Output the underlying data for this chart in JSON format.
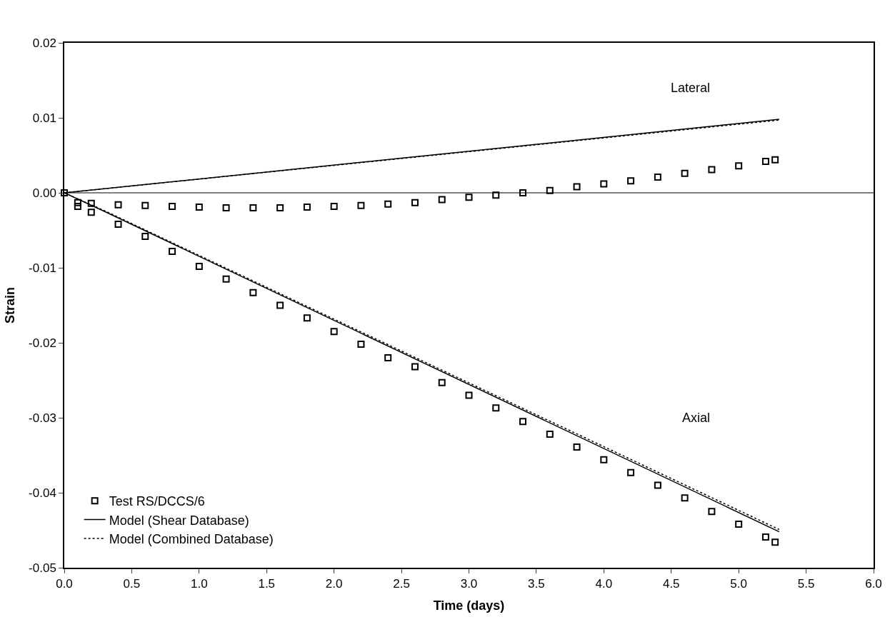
{
  "chart_data": {
    "type": "line",
    "xlabel": "Time (days)",
    "ylabel": "Strain",
    "xlim": [
      0,
      6
    ],
    "ylim": [
      -0.05,
      0.02
    ],
    "xticks": [
      {
        "value": 0,
        "label": "0.0"
      },
      {
        "value": 0.5,
        "label": "0.5"
      },
      {
        "value": 1,
        "label": "1.0"
      },
      {
        "value": 1.5,
        "label": "1.5"
      },
      {
        "value": 2,
        "label": "2.0"
      },
      {
        "value": 2.5,
        "label": "2.5"
      },
      {
        "value": 3,
        "label": "3.0"
      },
      {
        "value": 3.5,
        "label": "3.5"
      },
      {
        "value": 4,
        "label": "4.0"
      },
      {
        "value": 4.5,
        "label": "4.5"
      },
      {
        "value": 5,
        "label": "5.0"
      },
      {
        "value": 5.5,
        "label": "5.5"
      },
      {
        "value": 6,
        "label": "6.0"
      }
    ],
    "yticks": [
      {
        "value": 0.02,
        "label": "0.02"
      },
      {
        "value": 0.01,
        "label": "0.01"
      },
      {
        "value": 0,
        "label": "0.00"
      },
      {
        "value": -0.01,
        "label": "-0.01"
      },
      {
        "value": -0.02,
        "label": "-0.02"
      },
      {
        "value": -0.03,
        "label": "-0.03"
      },
      {
        "value": -0.04,
        "label": "-0.04"
      },
      {
        "value": -0.05,
        "label": "-0.05"
      }
    ],
    "grid": false,
    "legend": "bottom left",
    "ref_lines": [
      {
        "axis": "y",
        "value": 0,
        "color": "#000000"
      }
    ],
    "annotations": [
      "Lateral",
      "Axial"
    ],
    "series": [
      {
        "name": "Test RS/DCCS/6",
        "type": "scatter",
        "marker": "square",
        "color": "#000000",
        "x": [
          0,
          0.1,
          0.2,
          0.4,
          0.6,
          0.8,
          1.0,
          1.2,
          1.4,
          1.6,
          1.8,
          2.0,
          2.2,
          2.4,
          2.6,
          2.8,
          3.0,
          3.2,
          3.4,
          3.6,
          3.8,
          4.0,
          4.2,
          4.4,
          4.6,
          4.8,
          5.0,
          5.2,
          5.27
        ],
        "values": [
          0,
          -0.0013,
          -0.0014,
          -0.0016,
          -0.0017,
          -0.0018,
          -0.0019,
          -0.002,
          -0.002,
          -0.002,
          -0.0019,
          -0.0018,
          -0.0017,
          -0.0015,
          -0.0013,
          -0.0009,
          -0.0006,
          -0.0003,
          0,
          0.0003,
          0.0008,
          0.0012,
          0.0016,
          0.0021,
          0.0026,
          0.0031,
          0.0036,
          0.0042,
          0.0044
        ]
      },
      {
        "type": "scatter",
        "marker": "square",
        "color": "#000000",
        "x": [
          0.1,
          0.2,
          0.4,
          0.6,
          0.8,
          1.0,
          1.2,
          1.4,
          1.6,
          1.8,
          2.0,
          2.2,
          2.4,
          2.6,
          2.8,
          3.0,
          3.2,
          3.4,
          3.6,
          3.8,
          4.0,
          4.2,
          4.4,
          4.6,
          4.8,
          5.0,
          5.2,
          5.27
        ],
        "values": [
          -0.0018,
          -0.0026,
          -0.0042,
          -0.0058,
          -0.0078,
          -0.0098,
          -0.0115,
          -0.0133,
          -0.015,
          -0.0167,
          -0.0185,
          -0.0202,
          -0.022,
          -0.0232,
          -0.0253,
          -0.027,
          -0.0287,
          -0.0305,
          -0.0322,
          -0.0339,
          -0.0356,
          -0.0373,
          -0.039,
          -0.0407,
          -0.0425,
          -0.0442,
          -0.0459,
          -0.0466
        ]
      },
      {
        "name": "Model (Shear Database)",
        "line_style": "solid",
        "color": "#000000",
        "x": [
          0,
          5.3
        ],
        "values": [
          0,
          0.0098
        ]
      },
      {
        "line_style": "solid",
        "color": "#000000",
        "x": [
          0,
          0.3,
          5.3
        ],
        "values": [
          0,
          -0.0025,
          -0.0452
        ]
      },
      {
        "name": "Model (Combined Database)",
        "line_style": "dotted",
        "color": "#000000",
        "x": [
          0,
          5.3
        ],
        "values": [
          0,
          0.0097
        ]
      },
      {
        "line_style": "dotted",
        "color": "#000000",
        "x": [
          0,
          0.3,
          5.3
        ],
        "values": [
          0,
          -0.0024,
          -0.0449
        ]
      }
    ]
  }
}
